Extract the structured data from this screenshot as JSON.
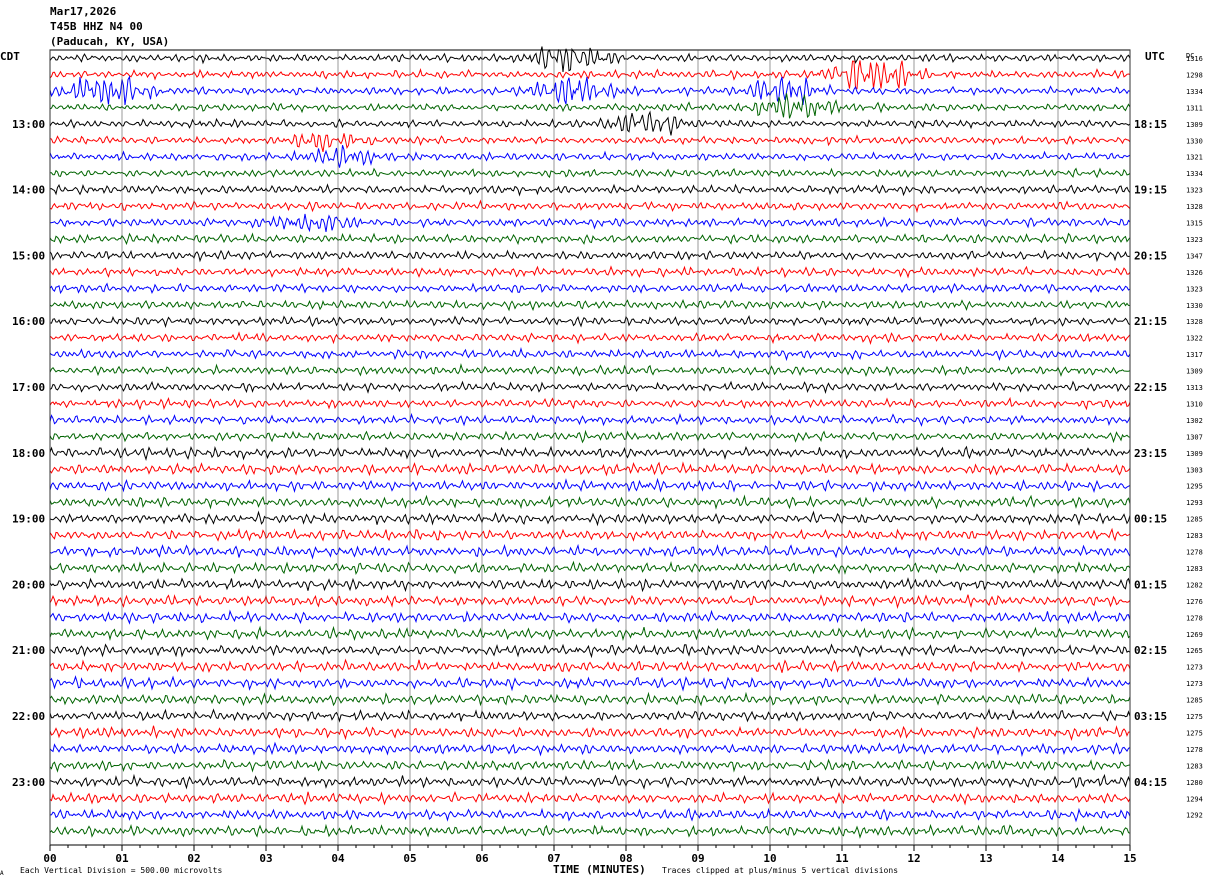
{
  "header": {
    "date": "Mar17,2026",
    "station": "T45B HHZ N4 00",
    "location": "(Paducah, KY, USA)"
  },
  "left_tz": "CDT",
  "right_tz": "UTC",
  "dc_label": "DC",
  "footer": {
    "left_mark": "A",
    "scale_note": "Each Vertical Division =  500.00 microvolts",
    "clip_note": "Traces clipped at plus/minus 5 vertical divisions"
  },
  "chart_data": {
    "type": "seismogram",
    "xlabel": "TIME (MINUTES)",
    "xlim": [
      0,
      15
    ],
    "x_ticks": [
      "00",
      "01",
      "02",
      "03",
      "04",
      "05",
      "06",
      "07",
      "08",
      "09",
      "10",
      "11",
      "12",
      "13",
      "14",
      "15"
    ],
    "trace_interval_minutes": 15,
    "trace_count": 48,
    "trace_colors": [
      "#000000",
      "#ff0000",
      "#0000ff",
      "#006400"
    ],
    "left_time_labels": [
      "13:00",
      "14:00",
      "15:00",
      "16:00",
      "17:00",
      "18:00",
      "19:00",
      "20:00",
      "21:00",
      "22:00",
      "23:00"
    ],
    "right_time_labels": [
      "18:15",
      "19:15",
      "20:15",
      "21:15",
      "22:15",
      "23:15",
      "00:15",
      "01:15",
      "02:15",
      "03:15",
      "04:15"
    ],
    "first_labeled_trace": 4,
    "dc_values": [
      1316,
      1298,
      1334,
      1311,
      1309,
      1330,
      1321,
      1334,
      1323,
      1328,
      1315,
      1323,
      1347,
      1326,
      1323,
      1330,
      1328,
      1322,
      1317,
      1309,
      1313,
      1310,
      1302,
      1307,
      1309,
      1303,
      1295,
      1293,
      1285,
      1283,
      1278,
      1283,
      1282,
      1276,
      1278,
      1269,
      1265,
      1273,
      1273,
      1285,
      1275,
      1275,
      1278,
      1283,
      1280,
      1294,
      1292
    ],
    "events": [
      {
        "trace": 0,
        "minute": 7.2,
        "amplitude": "moderate"
      },
      {
        "trace": 1,
        "minute": 11.4,
        "amplitude": "large"
      },
      {
        "trace": 2,
        "minute": 0.8,
        "amplitude": "large"
      },
      {
        "trace": 2,
        "minute": 7.3,
        "amplitude": "moderate"
      },
      {
        "trace": 2,
        "minute": 10.2,
        "amplitude": "moderate"
      },
      {
        "trace": 3,
        "minute": 10.3,
        "amplitude": "moderate"
      },
      {
        "trace": 4,
        "minute": 8.3,
        "amplitude": "moderate"
      },
      {
        "trace": 5,
        "minute": 3.8,
        "amplitude": "small"
      },
      {
        "trace": 6,
        "minute": 4.0,
        "amplitude": "small"
      },
      {
        "trace": 10,
        "minute": 3.7,
        "amplitude": "small"
      }
    ],
    "grid": true
  }
}
